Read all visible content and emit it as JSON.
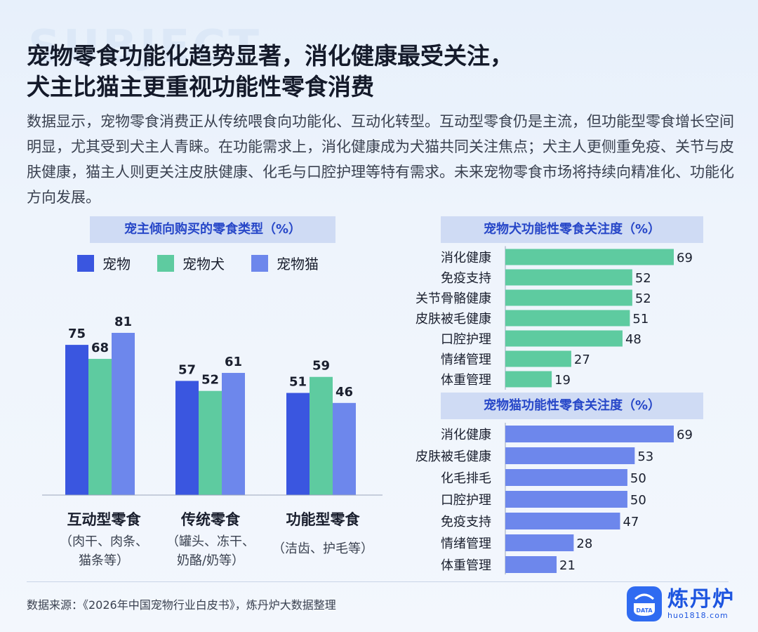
{
  "watermark": "SUBJECT",
  "title": {
    "line1": "宠物零食功能化趋势显著，消化健康最受关注，",
    "line2": "犬主比猫主更重视功能性零食消费"
  },
  "description": "数据显示，宠物零食消费正从传统喂食向功能化、互动化转型。互动型零食仍是主流，但功能型零食增长空间明显，尤其受到犬主人青睐。在功能需求上，消化健康成为犬猫共同关注焦点；犬主人更侧重免疫、关节与皮肤健康，猫主人则更关注皮肤健康、化毛与口腔护理等特有需求。未来宠物零食市场将持续向精准化、功能化方向发展。",
  "chart_data": [
    {
      "type": "bar",
      "title": "宠主倾向购买的零食类型（%）",
      "categories": [
        "互动型零食",
        "传统零食",
        "功能型零食"
      ],
      "category_subtitles": [
        [
          "（肉干、肉条、",
          "猫条等）"
        ],
        [
          "（罐头、冻干、",
          "奶酪/奶等）"
        ],
        [
          "（洁齿、护毛等）"
        ]
      ],
      "series": [
        {
          "name": "宠物",
          "color": "#3a56e0",
          "values": [
            75,
            57,
            51
          ]
        },
        {
          "name": "宠物犬",
          "color": "#5ecba0",
          "values": [
            68,
            52,
            59
          ]
        },
        {
          "name": "宠物猫",
          "color": "#6d87ec",
          "values": [
            81,
            61,
            46
          ]
        }
      ],
      "ylim": [
        0,
        100
      ]
    },
    {
      "type": "bar",
      "orientation": "horizontal",
      "title": "宠物犬功能性零食关注度（%）",
      "color": "#5ecba0",
      "categories": [
        "消化健康",
        "免疫支持",
        "关节骨骼健康",
        "皮肤被毛健康",
        "口腔护理",
        "情绪管理",
        "体重管理"
      ],
      "values": [
        69,
        52,
        52,
        51,
        48,
        27,
        19
      ],
      "xlim": [
        0,
        75
      ]
    },
    {
      "type": "bar",
      "orientation": "horizontal",
      "title": "宠物猫功能性零食关注度（%）",
      "color": "#6d87ec",
      "categories": [
        "消化健康",
        "皮肤被毛健康",
        "化毛排毛",
        "口腔护理",
        "免疫支持",
        "情绪管理",
        "体重管理"
      ],
      "values": [
        69,
        53,
        50,
        50,
        47,
        28,
        21
      ],
      "xlim": [
        0,
        75
      ]
    }
  ],
  "footer": {
    "source": "数据来源：《2026年中国宠物行业白皮书》，炼丹炉大数据整理",
    "logo_name": "炼丹炉",
    "logo_url": "huo1818.com",
    "logo_badge": "DATA"
  }
}
